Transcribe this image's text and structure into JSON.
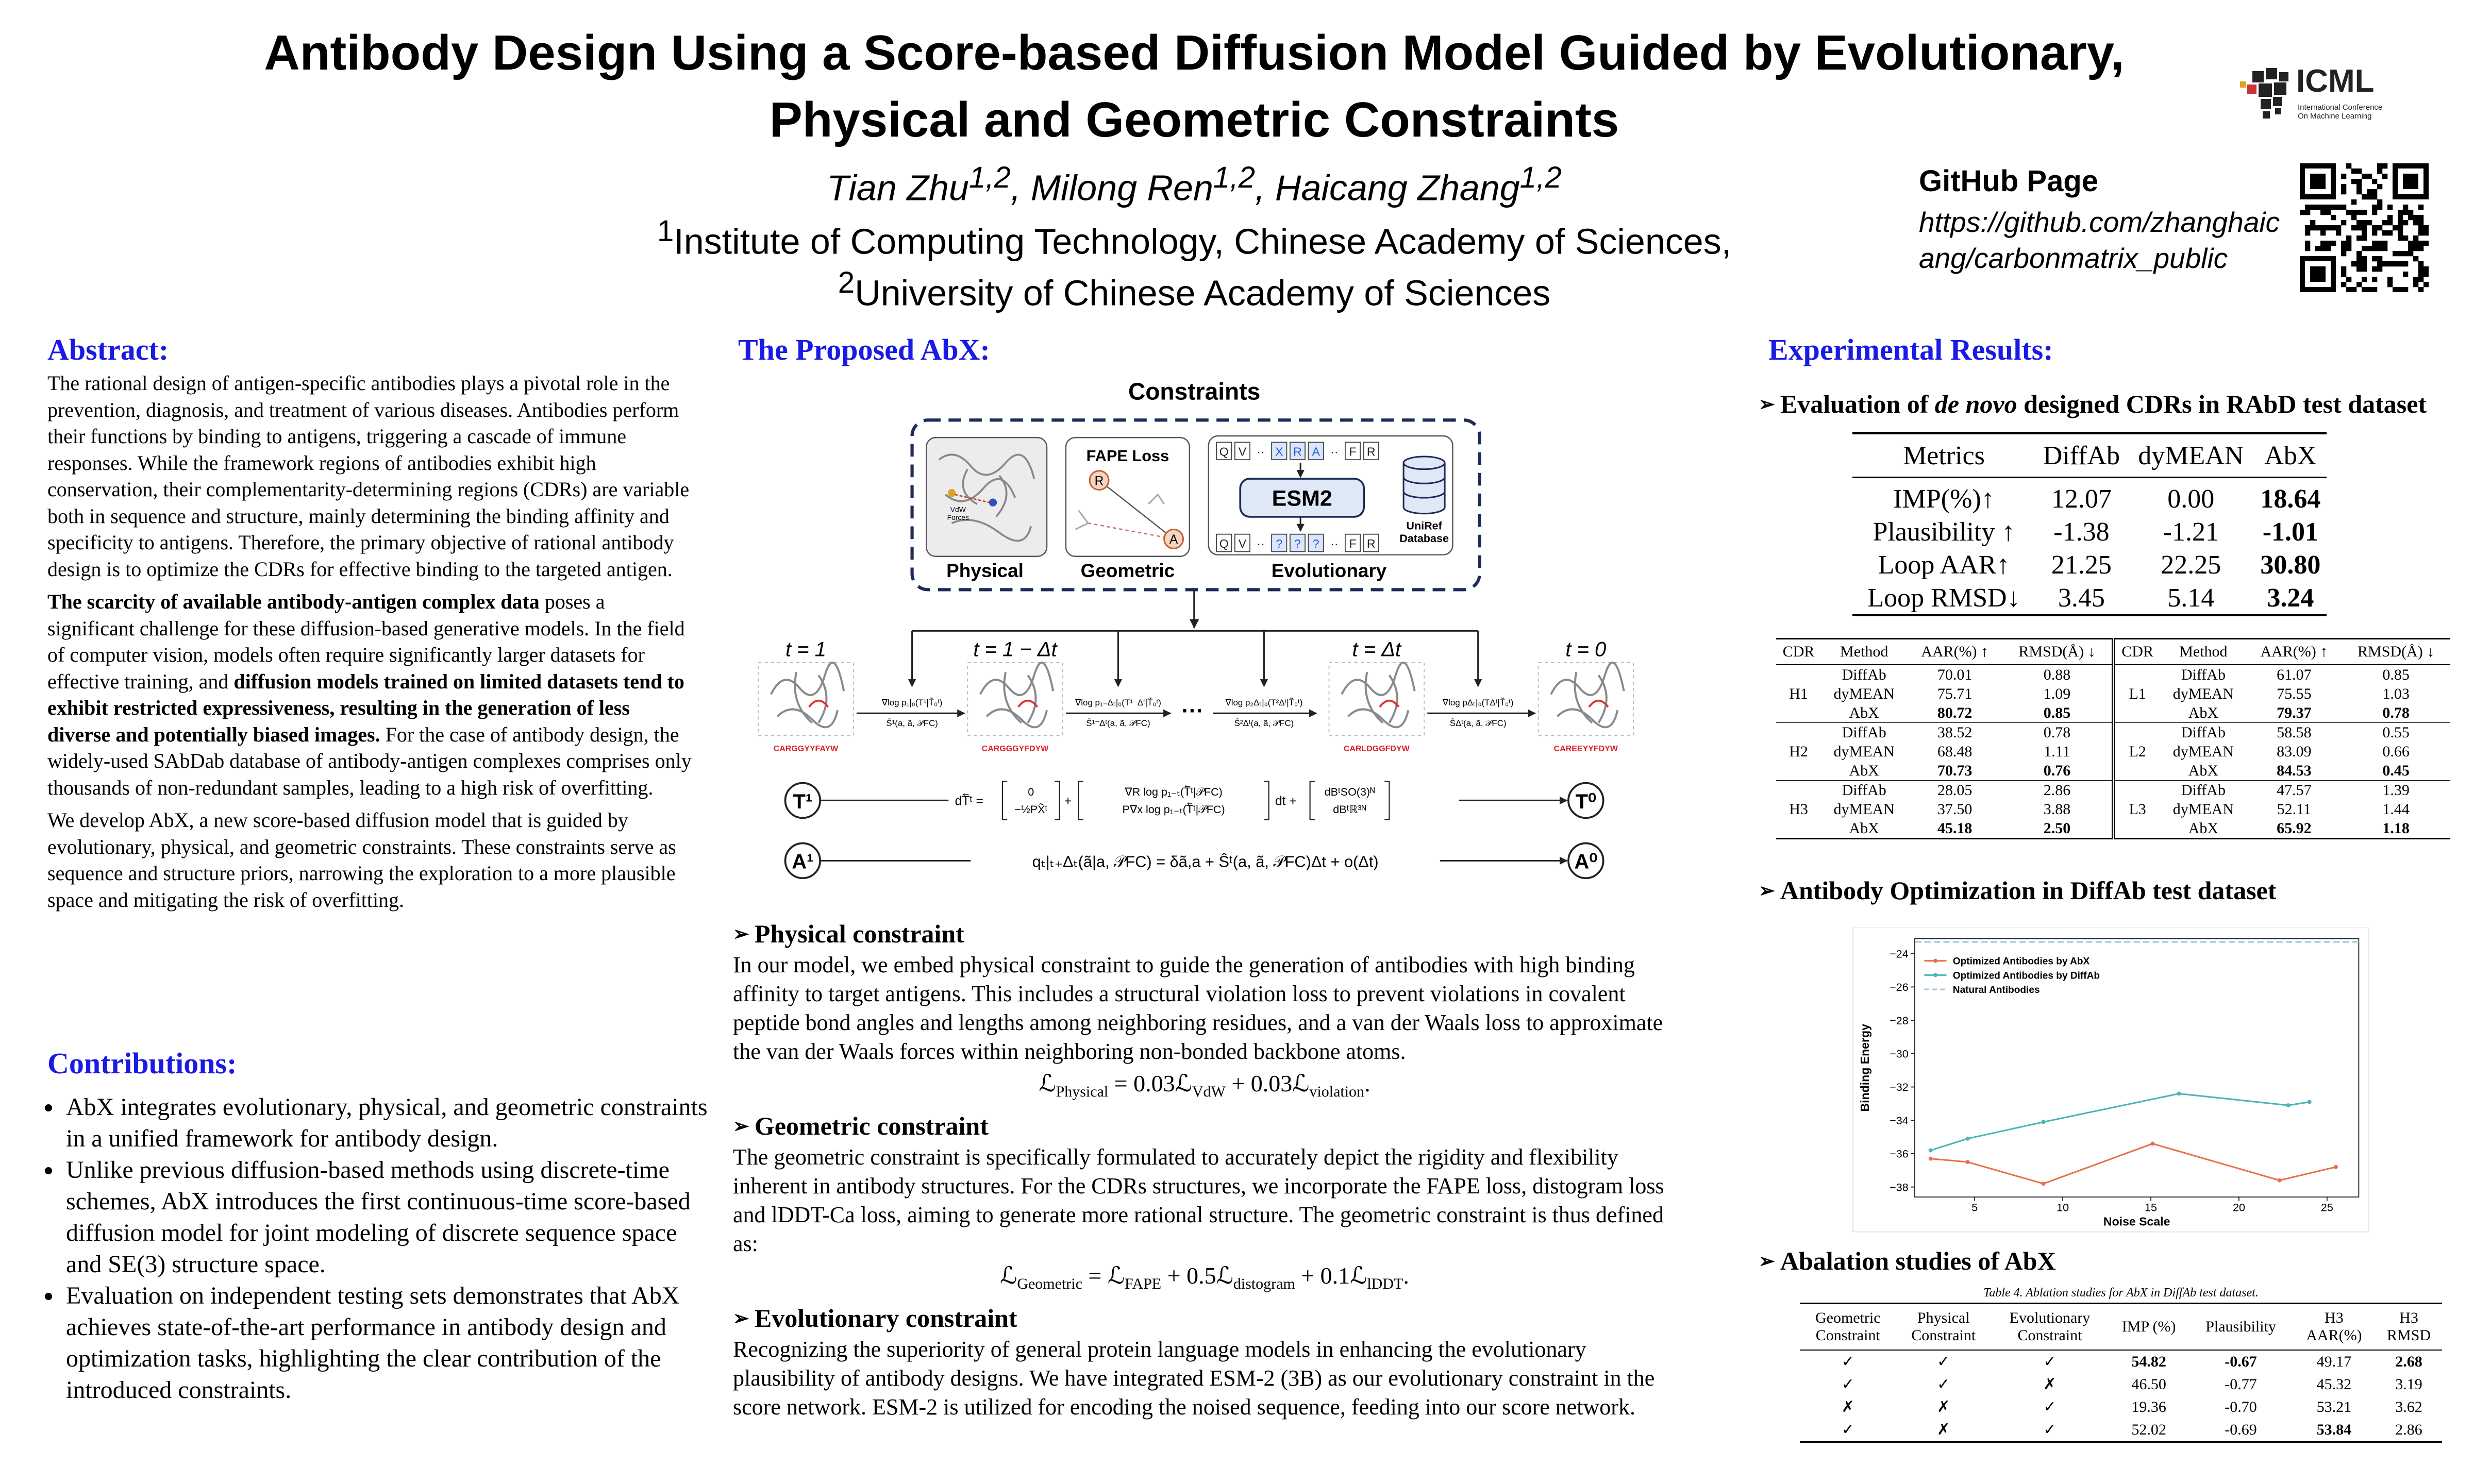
{
  "header": {
    "title_line1": "Antibody Design Using a Score-based Diffusion Model Guided by Evolutionary,",
    "title_line2": "Physical and Geometric Constraints",
    "authors": [
      "Tian Zhu",
      {
        "sup": "1,2"
      },
      ", Milong Ren",
      {
        "sup": "1,2"
      },
      ", Haicang Zhang",
      {
        "sup": "1,2"
      }
    ],
    "affiliation1": [
      {
        "sup": "1"
      },
      "Institute of Computing Technology, Chinese Academy of Sciences,"
    ],
    "affiliation2": [
      {
        "sup": "2"
      },
      "University of Chinese Academy of Sciences"
    ],
    "github_label": "GitHub Page",
    "github_url": "https://github.com/zhanghaicang/carbonmatrix_public",
    "logo": "ICML",
    "logo_sub1": "International Conference",
    "logo_sub2": "On Machine Learning"
  },
  "abstract": {
    "heading": "Abstract:",
    "paragraphs": [
      "The rational design of antigen-specific antibodies plays a pivotal role in the prevention, diagnosis, and treatment of various diseases. Antibodies perform their functions by binding to antigens, triggering a cascade of immune responses.  While the framework regions of antibodies exhibit high conservation, their complementarity-determining regions (CDRs) are variable both in sequence and structure, mainly determining the binding affinity and specificity to antigens. Therefore, the primary objective of rational antibody design is to optimize the CDRs for effective binding to the targeted antigen.",
      [
        {
          "b": "The scarcity of available antibody-antigen complex data"
        },
        " poses a significant challenge for these diffusion-based generative models. In the field of computer vision, models often require significantly larger datasets for effective training, and ",
        {
          "b": "diffusion models trained on limited datasets tend to exhibit restricted expressiveness, resulting in the generation of less diverse and potentially biased images."
        },
        " For the case of antibody design, the widely-used SAbDab database of antibody-antigen complexes comprises only thousands of non-redundant samples, leading to a high risk of overfitting."
      ],
      "We develop AbX, a new score-based diffusion model that is guided by evolutionary, physical, and geometric constraints. These constraints serve as sequence and structure priors, narrowing the exploration to a more plausible space and mitigating the risk of overfitting."
    ]
  },
  "contributions": {
    "heading": "Contributions:",
    "items": [
      "AbX integrates evolutionary, physical, and geometric constraints in a unified framework for antibody design.",
      "Unlike previous diffusion-based methods using discrete-time schemes, AbX introduces the first continuous-time score-based diffusion model for joint modeling of discrete sequence space and SE(3) structure space.",
      "Evaluation on independent testing sets demonstrates that AbX achieves state-of-the-art performance in antibody design and optimization tasks, highlighting the clear contribution of the introduced constraints."
    ]
  },
  "method": {
    "heading": "The Proposed AbX:",
    "figure": {
      "constraints": "Constraints",
      "physical": "Physical",
      "vdw": [
        "VdW",
        "Forces"
      ],
      "geometric": "Geometric",
      "fape": "FAPE Loss",
      "atom_r": "R",
      "atom_a": "A",
      "evolutionary": "Evolutionary",
      "esm": "ESM2",
      "uniref": [
        "UniRef",
        "Database"
      ],
      "tokens_top": [
        "Q",
        "V",
        "··",
        "X",
        "R",
        "A",
        "··",
        "F",
        "R"
      ],
      "tokens_bottom": [
        "Q",
        "V",
        "··",
        "?",
        "?",
        "?",
        "··",
        "F",
        "R"
      ],
      "times": [
        "t = 1",
        "t = 1 − Δt",
        "t = Δt",
        "t = 0"
      ],
      "sequences": [
        "CARGGYYFAYW",
        "CARGGGYFDYW",
        "CARLDGGFDYW",
        "CAREEYYFDYW"
      ],
      "score_labels": [
        "∇log p₁|₀(T¹|T̃₀ᵗ)",
        "∇log p₁₋Δₜ|₀(T¹⁻Δᵗ|T̃₀ᵗ)",
        "∇log p₂Δₜ|₀(T²Δᵗ|T̃₀ᵗ)",
        "∇log pΔₜ|₀(TΔᵗ|T̃₀ᵗ)"
      ],
      "rate_labels": [
        "Ŝ¹(a, ã, 𝒫FC)",
        "Ŝ¹⁻Δᵗ(a, ã, 𝒫FC)",
        "Ŝ²Δᵗ(a, ã, 𝒫FC)",
        "ŜΔᵗ(a, ã, 𝒫FC)"
      ],
      "ellipsis": "···",
      "t_start": "T¹",
      "t_end": "T⁰",
      "a_start": "A¹",
      "a_end": "A⁰",
      "t_equation": {
        "lhs": "dT⃖ᵗ =",
        "m1": [
          "0",
          "−½PX̃ᵗ"
        ],
        "op1": "+",
        "m2": [
          "∇R log p₁₋ₜ(T⃖ᵗ|𝒫FC)",
          "P∇x log p₁₋ₜ(T⃖ᵗ|𝒫FC)"
        ],
        "op2": "dt +",
        "m3": [
          "dBᵗSO(3)ᴺ",
          "dBᵗℝ³ᴺ"
        ]
      },
      "a_equation": "qₜ|ₜ₊Δₜ(ã|a, 𝒫FC) = δã,a + Ŝᵗ(a, ã, 𝒫FC)Δt + o(Δt)"
    },
    "sections": [
      {
        "heading": "Physical constraint",
        "text": "In our model, we embed physical constraint to guide the generation of antibodies with high binding affinity to target antigens. This includes a structural violation loss to prevent violations in covalent peptide bond angles and lengths among neighboring residues, and a van der Waals loss to approximate the van der Waals forces within neighboring non-bonded backbone atoms.",
        "equation": [
          {
            "base": "ℒ",
            "sub": "Physical"
          },
          " = 0.03",
          {
            "base": "ℒ",
            "sub": "VdW"
          },
          " + 0.03",
          {
            "base": "ℒ",
            "sub": "violation"
          },
          "."
        ]
      },
      {
        "heading": "Geometric constraint",
        "text": "The geometric constraint is specifically formulated to accurately depict the rigidity and flexibility inherent in antibody structures. For the CDRs structures, we incorporate the FAPE loss, distogram loss and lDDT-Ca loss, aiming to generate more rational structure. The geometric constraint is thus defined as:",
        "equation": [
          {
            "base": "ℒ",
            "sub": "Geometric"
          },
          " = ",
          {
            "base": "ℒ",
            "sub": "FAPE"
          },
          " + 0.5",
          {
            "base": "ℒ",
            "sub": "distogram"
          },
          " + 0.1",
          {
            "base": "ℒ",
            "sub": "lDDT"
          },
          "."
        ]
      },
      {
        "heading": "Evolutionary constraint",
        "text": "Recognizing the superiority of general protein language models in enhancing the evolutionary plausibility of antibody designs. We have integrated ESM-2 (3B) as our evolutionary constraint in the score network. ESM-2 is utilized for encoding the noised sequence, feeding into our score network."
      }
    ]
  },
  "results": {
    "heading": "Experimental Results:",
    "denovo": {
      "heading": [
        "Evaluation of ",
        {
          "em": "de novo"
        },
        " designed CDRs in RAbD test dataset"
      ],
      "table": {
        "header": [
          "Metrics",
          "DiffAb",
          "dyMEAN",
          "AbX"
        ],
        "rows": [
          [
            "IMP(%)↑",
            "12.07",
            "0.00",
            "18.64"
          ],
          [
            "Plausibility ↑",
            "-1.38",
            "-1.21",
            "-1.01"
          ],
          [
            "Loop AAR↑",
            "21.25",
            "22.25",
            "30.80"
          ],
          [
            "Loop RMSD↓",
            "3.45",
            "5.14",
            "3.24"
          ]
        ]
      },
      "cdr_table": {
        "header": [
          "CDR",
          "Method",
          "AAR(%) ↑",
          "RMSD(Å) ↓",
          "CDR",
          "Method",
          "AAR(%) ↑",
          "RMSD(Å) ↓"
        ],
        "groups": [
          {
            "left": {
              "cdr": "H1",
              "rows": [
                [
                  "DiffAb",
                  "70.01",
                  "0.88"
                ],
                [
                  "dyMEAN",
                  "75.71",
                  "1.09"
                ],
                [
                  "AbX",
                  "80.72",
                  "0.85"
                ]
              ]
            },
            "right": {
              "cdr": "L1",
              "rows": [
                [
                  "DiffAb",
                  "61.07",
                  "0.85"
                ],
                [
                  "dyMEAN",
                  "75.55",
                  "1.03"
                ],
                [
                  "AbX",
                  "79.37",
                  "0.78"
                ]
              ]
            }
          },
          {
            "left": {
              "cdr": "H2",
              "rows": [
                [
                  "DiffAb",
                  "38.52",
                  "0.78"
                ],
                [
                  "dyMEAN",
                  "68.48",
                  "1.11"
                ],
                [
                  "AbX",
                  "70.73",
                  "0.76"
                ]
              ]
            },
            "right": {
              "cdr": "L2",
              "rows": [
                [
                  "DiffAb",
                  "58.58",
                  "0.55"
                ],
                [
                  "dyMEAN",
                  "83.09",
                  "0.66"
                ],
                [
                  "AbX",
                  "84.53",
                  "0.45"
                ]
              ]
            }
          },
          {
            "left": {
              "cdr": "H3",
              "rows": [
                [
                  "DiffAb",
                  "28.05",
                  "2.86"
                ],
                [
                  "dyMEAN",
                  "37.50",
                  "3.88"
                ],
                [
                  "AbX",
                  "45.18",
                  "2.50"
                ]
              ]
            },
            "right": {
              "cdr": "L3",
              "rows": [
                [
                  "DiffAb",
                  "47.57",
                  "1.39"
                ],
                [
                  "dyMEAN",
                  "52.11",
                  "1.44"
                ],
                [
                  "AbX",
                  "65.92",
                  "1.18"
                ]
              ]
            }
          }
        ]
      }
    },
    "optimization": {
      "heading": "Antibody Optimization in DiffAb test dataset",
      "chart": {
        "type": "line",
        "xlabel": "Noise Scale",
        "ylabel": "Binding Energy",
        "xlim": [
          1.6,
          26.8
        ],
        "ylim": [
          -38.6,
          -23.1
        ],
        "xticks": [
          5,
          10,
          15,
          20,
          25
        ],
        "yticks": [
          {
            "value": -24,
            "label": "−24"
          },
          {
            "value": -26,
            "label": "−26"
          },
          {
            "value": -28,
            "label": "−28"
          },
          {
            "value": -30,
            "label": "−30"
          },
          {
            "value": -32,
            "label": "−32"
          },
          {
            "value": -34,
            "label": "−34"
          },
          {
            "value": -36,
            "label": "−36"
          },
          {
            "value": -38,
            "label": "−38"
          }
        ],
        "legend": "upper left",
        "series": [
          {
            "name": "Optimized Antibodies by AbX",
            "color": "#e8704a",
            "x": [
              2.5,
              4.6,
              8.9,
              15.1,
              22.3,
              25.5
            ],
            "values": [
              -36.3,
              -36.5,
              -37.8,
              -35.4,
              -37.6,
              -36.8
            ]
          },
          {
            "name": "Optimized Antibodies by DiffAb",
            "color": "#4bb5b5",
            "x": [
              2.5,
              4.6,
              8.9,
              16.6,
              22.8,
              24.0
            ],
            "values": [
              -35.8,
              -35.1,
              -34.1,
              -32.4,
              -33.1,
              -32.9
            ]
          }
        ],
        "reference": {
          "name": "Natural Antibodies",
          "color": "#9ecae1",
          "value": -23.3
        }
      }
    },
    "ablation": {
      "heading": "Abalation studies of AbX",
      "caption": "Table 4. Ablation studies for AbX in DiffAb test dataset.",
      "header": [
        [
          "Geometric",
          "Constraint"
        ],
        [
          "Physical",
          "Constraint"
        ],
        [
          "Evolutionary",
          "Constraint"
        ],
        [
          "IMP (%)"
        ],
        [
          "Plausibility"
        ],
        [
          "H3",
          "AAR(%)"
        ],
        [
          "H3",
          "RMSD"
        ]
      ],
      "rows": [
        [
          "✓",
          "✓",
          "✓",
          "54.82",
          "-0.67",
          "49.17",
          "2.68"
        ],
        [
          "✓",
          "✓",
          "✗",
          "46.50",
          "-0.77",
          "45.32",
          "3.19"
        ],
        [
          "✗",
          "✗",
          "✓",
          "19.36",
          "-0.70",
          "53.21",
          "3.62"
        ],
        [
          "✓",
          "✗",
          "✓",
          "52.02",
          "-0.69",
          "53.84",
          "2.86"
        ]
      ]
    }
  }
}
